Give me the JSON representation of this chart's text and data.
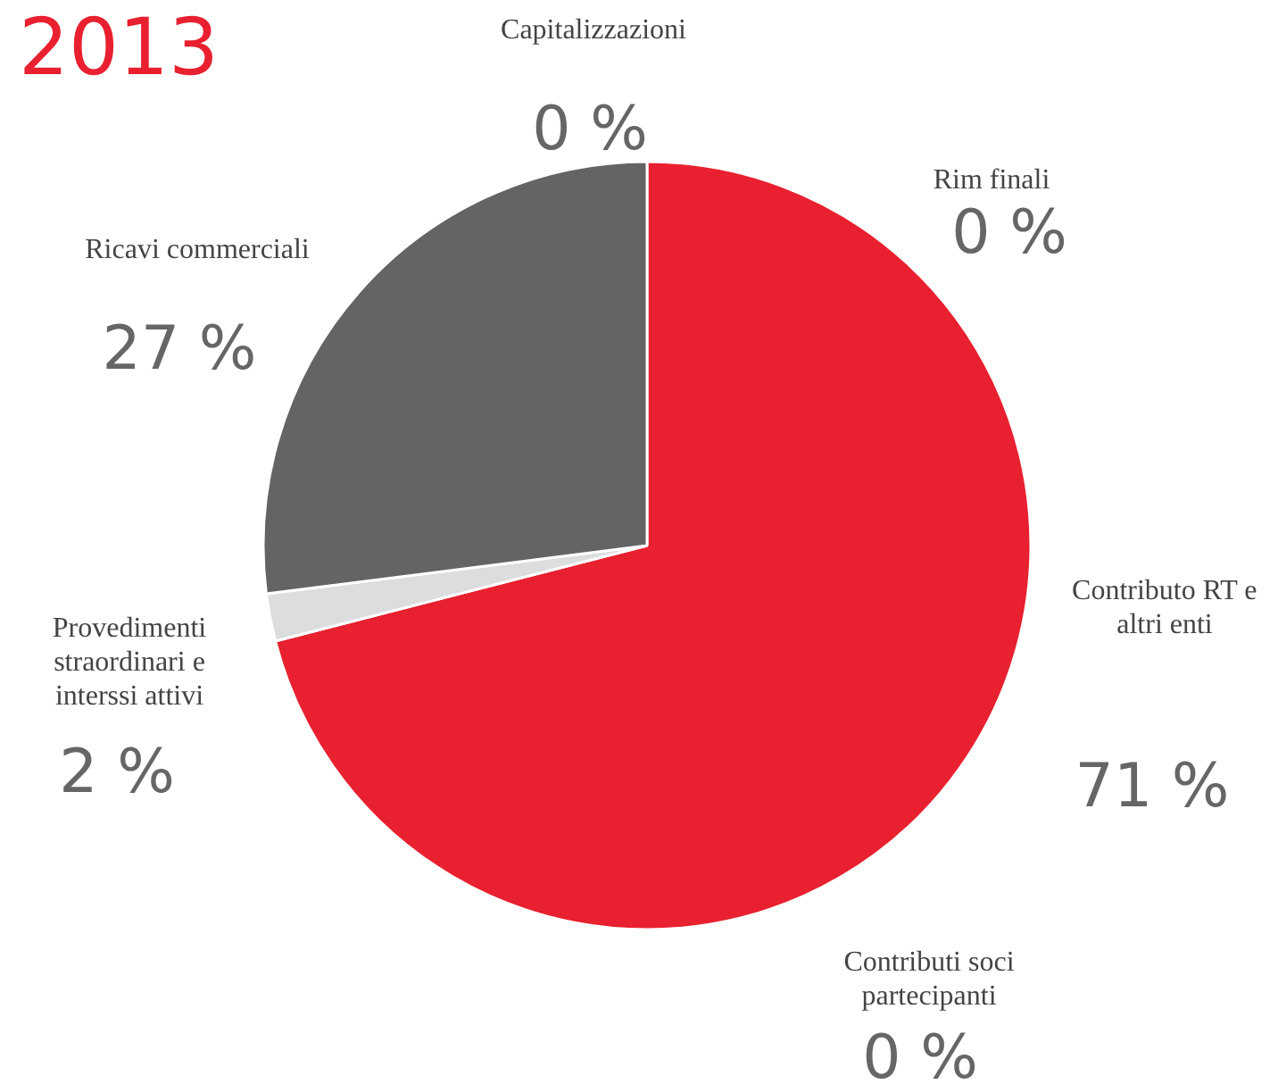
{
  "chart_data": {
    "type": "pie",
    "title": "2013",
    "categories": [
      "Contributo RT e altri enti",
      "Contributi soci partecipanti",
      "Provedimenti straordinari e interssi attivi",
      "Ricavi commerciali",
      "Capitalizzazioni",
      "Rim finali"
    ],
    "values": [
      71,
      0,
      2,
      27,
      0,
      0
    ],
    "colors": [
      "#e8202f",
      "#e8202f",
      "#dcdddf",
      "#636466",
      "#636466",
      "#636466"
    ],
    "value_labels": [
      "71 %",
      "0 %",
      "2 %",
      "27 %",
      "0 %",
      "0 %"
    ]
  }
}
